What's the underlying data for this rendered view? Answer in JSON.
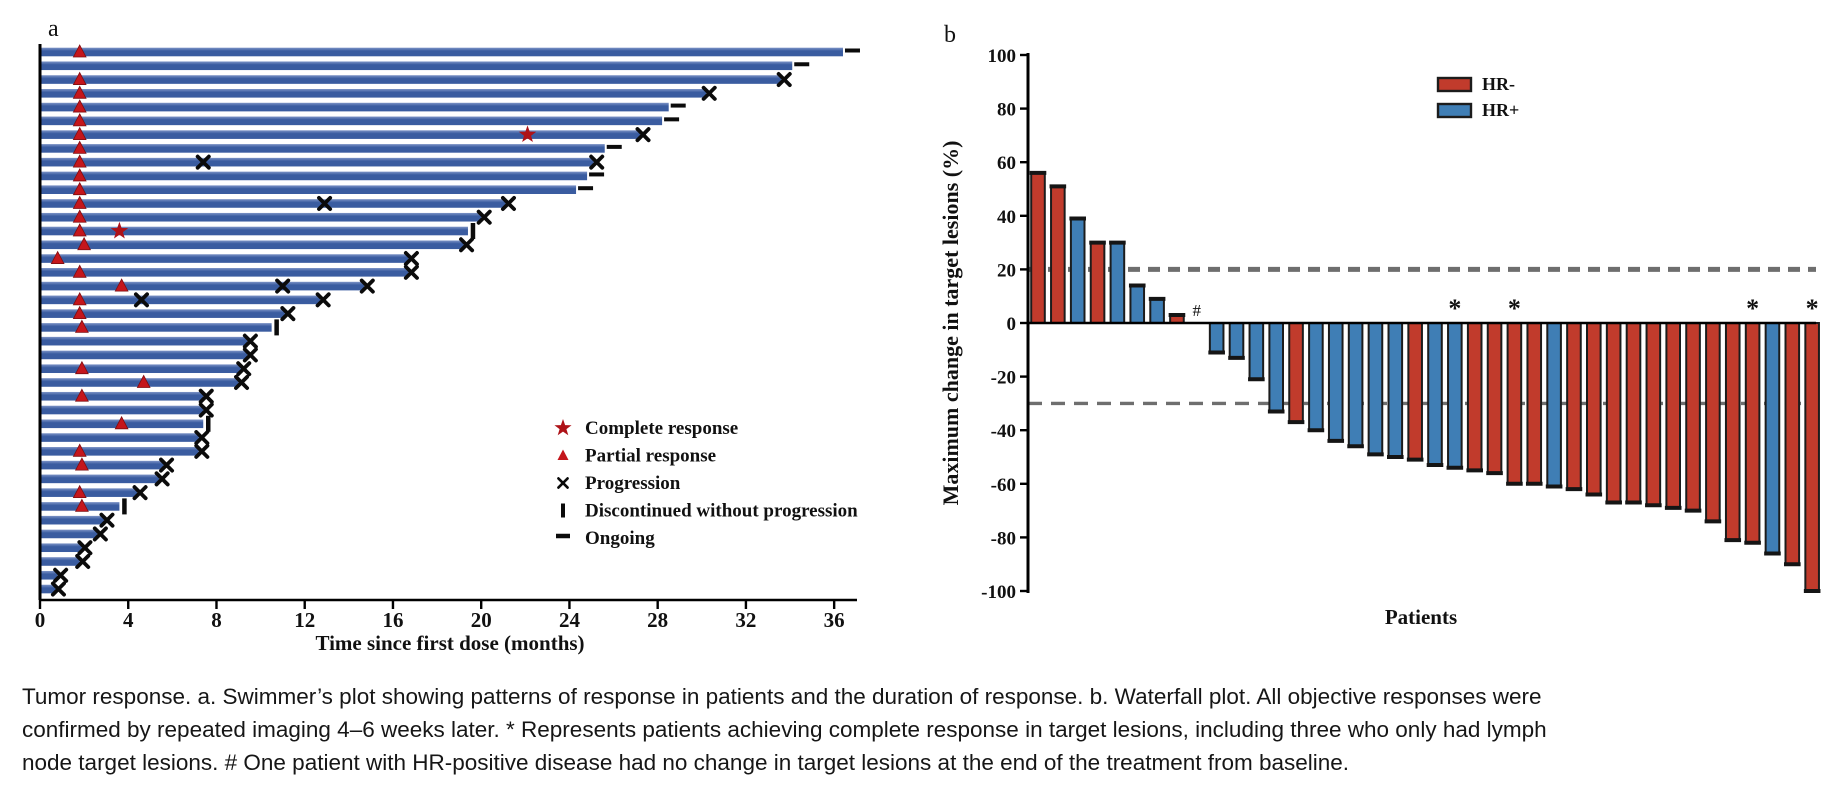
{
  "panel_a": {
    "label": "a",
    "legend": [
      {
        "marker": "star",
        "label": "Complete response"
      },
      {
        "marker": "triangle",
        "label": "Partial response"
      },
      {
        "marker": "x",
        "label": "Progression"
      },
      {
        "marker": "vbar",
        "label": "Discontinued without progression"
      },
      {
        "marker": "dash",
        "label": "Ongoing"
      }
    ]
  },
  "panel_b": {
    "label": "b",
    "legend": [
      {
        "swatch": "HR-",
        "label": "HR-",
        "color": "#C13B2C"
      },
      {
        "swatch": "HR+",
        "label": "HR+",
        "color": "#3F7EB5"
      }
    ],
    "zero_annotation": "#",
    "complete_response_annotation": "*"
  },
  "caption": {
    "lines": [
      "Tumor response. a. Swimmer’s plot showing patterns of response in patients and the duration of response. b. Waterfall plot. All objective responses were",
      "confirmed by repeated imaging 4–6 weeks later. * Represents patients achieving complete response in target lesions, including three who only had lymph",
      "node target lesions. # One patient with HR-positive disease had no change in target lesions at the end of the treatment from baseline."
    ]
  },
  "colors": {
    "swimmer_bar": "#3A5CA0",
    "swimmer_bar_light": "#7C93C6",
    "marker_red": "#C4161C",
    "star_red": "#AE1218",
    "ink": "#111111",
    "hr_negative": "#C13B2C",
    "hr_positive": "#3F7EB5",
    "reference_line": "#6E6E6E"
  },
  "chart_data": [
    {
      "type": "bar",
      "name": "swimmer_plot",
      "orientation": "horizontal",
      "xlabel": "Time since first dose (months)",
      "xlim": [
        0,
        37
      ],
      "xticks": [
        0,
        4,
        8,
        12,
        16,
        20,
        24,
        28,
        32,
        36
      ],
      "marker_meanings": {
        "star": "Complete response",
        "triangle": "Partial response",
        "x": "Progression",
        "vbar": "Discontinued without progression",
        "dash": "Ongoing"
      },
      "patients": [
        {
          "duration": 36.4,
          "end": "ongoing",
          "triangle": 1.8
        },
        {
          "duration": 34.1,
          "end": "ongoing"
        },
        {
          "duration": 33.6,
          "end": "progression",
          "triangle": 1.8
        },
        {
          "duration": 30.2,
          "end": "progression",
          "triangle": 1.8
        },
        {
          "duration": 28.5,
          "end": "ongoing",
          "triangle": 1.8
        },
        {
          "duration": 28.2,
          "end": "ongoing",
          "triangle": 1.8
        },
        {
          "duration": 27.2,
          "end": "progression",
          "triangle": 1.8,
          "star": 22.1
        },
        {
          "duration": 25.6,
          "end": "ongoing",
          "triangle": 1.8
        },
        {
          "duration": 25.1,
          "end": "progression",
          "triangle": 1.8,
          "x_marks": [
            7.4
          ]
        },
        {
          "duration": 24.8,
          "end": "ongoing",
          "triangle": 1.8
        },
        {
          "duration": 24.3,
          "end": "ongoing",
          "triangle": 1.8
        },
        {
          "duration": 21.1,
          "end": "progression",
          "triangle": 1.8,
          "x_marks": [
            12.9
          ]
        },
        {
          "duration": 20.0,
          "end": "progression",
          "triangle": 1.8
        },
        {
          "duration": 19.4,
          "end": "discontinued",
          "triangle": 1.8,
          "star": 3.6
        },
        {
          "duration": 19.2,
          "end": "progression",
          "triangle": 2.0
        },
        {
          "duration": 16.7,
          "end": "progression",
          "triangle": 0.8
        },
        {
          "duration": 16.7,
          "end": "progression",
          "triangle": 1.8
        },
        {
          "duration": 14.7,
          "end": "progression",
          "triangle": 3.7,
          "x_marks": [
            11.0
          ]
        },
        {
          "duration": 12.7,
          "end": "progression",
          "triangle": 1.8,
          "x_marks": [
            4.6
          ]
        },
        {
          "duration": 11.1,
          "end": "progression",
          "triangle": 1.8
        },
        {
          "duration": 10.5,
          "end": "discontinued",
          "triangle": 1.9
        },
        {
          "duration": 9.4,
          "end": "progression"
        },
        {
          "duration": 9.4,
          "end": "progression"
        },
        {
          "duration": 9.1,
          "end": "progression",
          "triangle": 1.9
        },
        {
          "duration": 9.0,
          "end": "progression",
          "triangle": 4.7
        },
        {
          "duration": 7.4,
          "end": "progression",
          "triangle": 1.9
        },
        {
          "duration": 7.4,
          "end": "progression"
        },
        {
          "duration": 7.4,
          "end": "discontinued",
          "triangle": 3.7
        },
        {
          "duration": 7.2,
          "end": "progression"
        },
        {
          "duration": 7.2,
          "end": "progression",
          "triangle": 1.8
        },
        {
          "duration": 5.6,
          "end": "progression",
          "triangle": 1.9
        },
        {
          "duration": 5.4,
          "end": "progression"
        },
        {
          "duration": 4.4,
          "end": "progression",
          "triangle": 1.8
        },
        {
          "duration": 3.6,
          "end": "discontinued",
          "triangle": 1.9
        },
        {
          "duration": 2.9,
          "end": "progression"
        },
        {
          "duration": 2.6,
          "end": "progression"
        },
        {
          "duration": 1.9,
          "end": "progression"
        },
        {
          "duration": 1.8,
          "end": "progression"
        },
        {
          "duration": 0.8,
          "end": "progression"
        },
        {
          "duration": 0.7,
          "end": "progression"
        }
      ]
    },
    {
      "type": "bar",
      "name": "waterfall_plot",
      "ylabel": "Maximum change in target lesions (%)",
      "xlabel": "Patients",
      "ylim": [
        -100,
        100
      ],
      "yticks": [
        100,
        80,
        60,
        40,
        20,
        0,
        -20,
        -40,
        -60,
        -80,
        -100
      ],
      "reference_lines": [
        20,
        -30
      ],
      "legend": [
        {
          "name": "HR-",
          "color": "#C13B2C"
        },
        {
          "name": "HR+",
          "color": "#3F7EB5"
        }
      ],
      "bars": [
        {
          "value": 56,
          "group": "HR-"
        },
        {
          "value": 51,
          "group": "HR-"
        },
        {
          "value": 39,
          "group": "HR+"
        },
        {
          "value": 30,
          "group": "HR-"
        },
        {
          "value": 30,
          "group": "HR+"
        },
        {
          "value": 14,
          "group": "HR+"
        },
        {
          "value": 9,
          "group": "HR+"
        },
        {
          "value": 3,
          "group": "HR-"
        },
        {
          "value": 0,
          "group": "HR+",
          "annotation": "#"
        },
        {
          "value": -11,
          "group": "HR+"
        },
        {
          "value": -13,
          "group": "HR+"
        },
        {
          "value": -21,
          "group": "HR+"
        },
        {
          "value": -33,
          "group": "HR+"
        },
        {
          "value": -37,
          "group": "HR-"
        },
        {
          "value": -40,
          "group": "HR+"
        },
        {
          "value": -44,
          "group": "HR+"
        },
        {
          "value": -46,
          "group": "HR+"
        },
        {
          "value": -49,
          "group": "HR+"
        },
        {
          "value": -50,
          "group": "HR+"
        },
        {
          "value": -51,
          "group": "HR-"
        },
        {
          "value": -53,
          "group": "HR+"
        },
        {
          "value": -54,
          "group": "HR+",
          "annotation": "*"
        },
        {
          "value": -55,
          "group": "HR-"
        },
        {
          "value": -56,
          "group": "HR-"
        },
        {
          "value": -60,
          "group": "HR-",
          "annotation": "*"
        },
        {
          "value": -60,
          "group": "HR-"
        },
        {
          "value": -61,
          "group": "HR+"
        },
        {
          "value": -62,
          "group": "HR-"
        },
        {
          "value": -64,
          "group": "HR-"
        },
        {
          "value": -67,
          "group": "HR-"
        },
        {
          "value": -67,
          "group": "HR-"
        },
        {
          "value": -68,
          "group": "HR-"
        },
        {
          "value": -69,
          "group": "HR-"
        },
        {
          "value": -70,
          "group": "HR-"
        },
        {
          "value": -74,
          "group": "HR-"
        },
        {
          "value": -81,
          "group": "HR-"
        },
        {
          "value": -82,
          "group": "HR-",
          "annotation": "*"
        },
        {
          "value": -86,
          "group": "HR+"
        },
        {
          "value": -90,
          "group": "HR-"
        },
        {
          "value": -100,
          "group": "HR-",
          "annotation": "*"
        }
      ]
    }
  ]
}
